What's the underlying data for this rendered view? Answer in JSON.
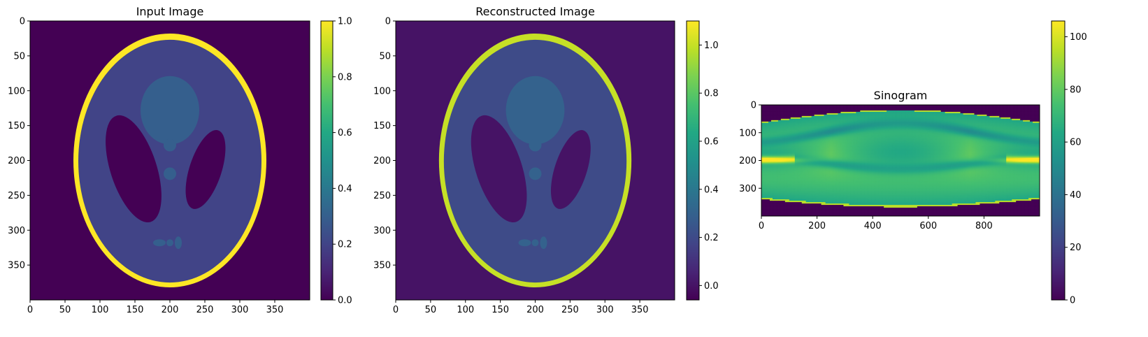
{
  "chart_data": [
    {
      "type": "heatmap",
      "title": "Input Image",
      "image": "phantom",
      "shape": [
        400,
        400
      ],
      "xlim": [
        0,
        400
      ],
      "ylim": [
        400,
        0
      ],
      "x_ticks": [
        0,
        50,
        100,
        150,
        200,
        250,
        300,
        350
      ],
      "y_ticks": [
        0,
        50,
        100,
        150,
        200,
        250,
        300,
        350
      ],
      "x_tick_labels": [
        "0",
        "50",
        "100",
        "150",
        "200",
        "250",
        "300",
        "350"
      ],
      "y_tick_labels": [
        "0",
        "50",
        "100",
        "150",
        "200",
        "250",
        "300",
        "350"
      ],
      "colorbar": {
        "colormap": "viridis",
        "min": 0.0,
        "max": 1.0,
        "ticks": [
          0.0,
          0.2,
          0.4,
          0.6,
          0.8,
          1.0
        ],
        "tick_labels": [
          "0.0",
          "0.2",
          "0.4",
          "0.6",
          "0.8",
          "1.0"
        ]
      }
    },
    {
      "type": "heatmap",
      "title": "Reconstructed Image",
      "image": "phantom-reconstruction",
      "shape": [
        400,
        400
      ],
      "xlim": [
        0,
        400
      ],
      "ylim": [
        400,
        0
      ],
      "x_ticks": [
        0,
        50,
        100,
        150,
        200,
        250,
        300,
        350
      ],
      "y_ticks": [
        0,
        50,
        100,
        150,
        200,
        250,
        300,
        350
      ],
      "x_tick_labels": [
        "0",
        "50",
        "100",
        "150",
        "200",
        "250",
        "300",
        "350"
      ],
      "y_tick_labels": [
        "0",
        "50",
        "100",
        "150",
        "200",
        "250",
        "300",
        "350"
      ],
      "colorbar": {
        "colormap": "viridis",
        "min": -0.06,
        "max": 1.1,
        "ticks": [
          0.0,
          0.2,
          0.4,
          0.6,
          0.8,
          1.0
        ],
        "tick_labels": [
          "0.0",
          "0.2",
          "0.4",
          "0.6",
          "0.8",
          "1.0"
        ]
      }
    },
    {
      "type": "heatmap",
      "title": "Sinogram",
      "image": "sinogram",
      "shape": [
        400,
        1000
      ],
      "xlim": [
        0,
        1000
      ],
      "ylim": [
        400,
        0
      ],
      "x_ticks": [
        0,
        200,
        400,
        600,
        800
      ],
      "y_ticks": [
        0,
        100,
        200,
        300
      ],
      "x_tick_labels": [
        "0",
        "200",
        "400",
        "600",
        "800"
      ],
      "y_tick_labels": [
        "0",
        "100",
        "200",
        "300"
      ],
      "colorbar": {
        "colormap": "viridis",
        "min": 0,
        "max": 106,
        "ticks": [
          0,
          20,
          40,
          60,
          80,
          100
        ],
        "tick_labels": [
          "0",
          "20",
          "40",
          "60",
          "80",
          "100"
        ]
      }
    }
  ]
}
